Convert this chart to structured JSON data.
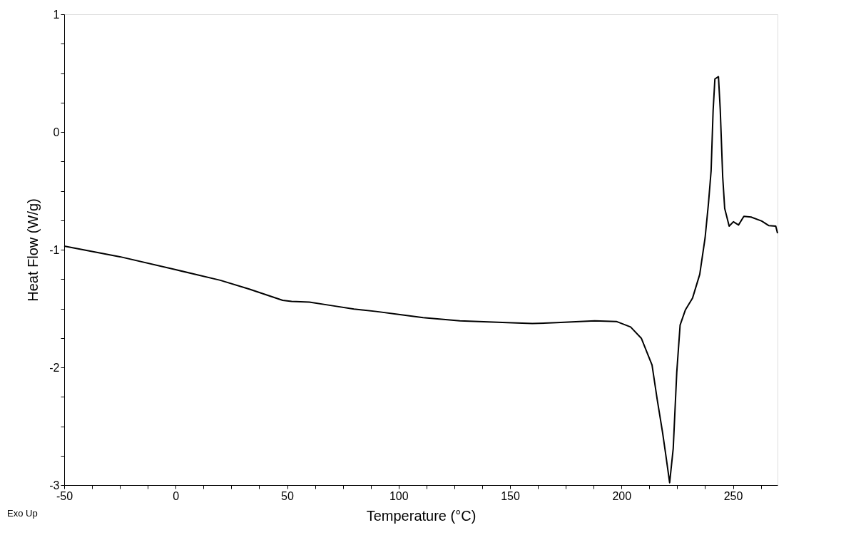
{
  "chart_data": {
    "type": "line",
    "xlabel": "Temperature (°C)",
    "ylabel": "Heat Flow (W/g)",
    "annotations": [
      "Exo Up"
    ],
    "x": [
      -50,
      -25,
      0,
      20,
      33,
      48,
      52,
      60,
      70,
      80,
      90,
      100,
      111,
      127.5,
      148.7,
      160,
      171,
      188,
      197.7,
      204.1,
      208.9,
      213.7,
      216,
      218.4,
      219.7,
      221.6,
      223.2,
      224.8,
      226.3,
      228.7,
      231.9,
      235.1,
      237.5,
      239,
      240.2,
      241.1,
      241.9,
      243.5,
      244.3,
      245.4,
      246.3,
      248.3,
      250.2,
      252.5,
      254.9,
      258.1,
      262.9,
      266,
      269.2,
      270
    ],
    "series": [
      {
        "color": "#000000",
        "values": [
          -0.97,
          -1.06,
          -1.17,
          -1.26,
          -1.335,
          -1.43,
          -1.44,
          -1.445,
          -1.475,
          -1.505,
          -1.525,
          -1.55,
          -1.577,
          -1.605,
          -1.62,
          -1.628,
          -1.62,
          -1.605,
          -1.61,
          -1.657,
          -1.753,
          -1.98,
          -2.27,
          -2.55,
          -2.72,
          -2.98,
          -2.69,
          -2.04,
          -1.64,
          -1.51,
          -1.41,
          -1.21,
          -0.9,
          -0.61,
          -0.33,
          0.18,
          0.45,
          0.47,
          0.19,
          -0.38,
          -0.65,
          -0.8,
          -0.763,
          -0.79,
          -0.717,
          -0.723,
          -0.757,
          -0.795,
          -0.8,
          -0.86
        ]
      }
    ],
    "xlim": [
      -50,
      270
    ],
    "xticks": [
      -50,
      {
        "value": -37.5,
        "label": null
      },
      {
        "value": -25,
        "label": null
      },
      {
        "value": -12.5,
        "label": null
      },
      0,
      {
        "value": 12.5,
        "label": null
      },
      {
        "value": 25,
        "label": null
      },
      {
        "value": 37.5,
        "label": null
      },
      50,
      {
        "value": 62.5,
        "label": null
      },
      {
        "value": 75,
        "label": null
      },
      {
        "value": 87.5,
        "label": null
      },
      100,
      {
        "value": 112.5,
        "label": null
      },
      {
        "value": 125,
        "label": null
      },
      {
        "value": 137.5,
        "label": null
      },
      150,
      {
        "value": 162.5,
        "label": null
      },
      {
        "value": 175,
        "label": null
      },
      {
        "value": 187.5,
        "label": null
      },
      200,
      {
        "value": 212.5,
        "label": null
      },
      {
        "value": 225,
        "label": null
      },
      {
        "value": 237.5,
        "label": null
      },
      250,
      {
        "value": 262.5,
        "label": null
      }
    ],
    "ylim": [
      -3,
      1
    ],
    "yticks": [
      -3,
      {
        "value": -2.75,
        "label": null
      },
      {
        "value": -2.5,
        "label": null
      },
      {
        "value": -2.25,
        "label": null
      },
      -2,
      {
        "value": -1.75,
        "label": null
      },
      {
        "value": -1.5,
        "label": null
      },
      {
        "value": -1.25,
        "label": null
      },
      -1,
      {
        "value": -0.75,
        "label": null
      },
      {
        "value": -0.5,
        "label": null
      },
      {
        "value": -0.25,
        "label": null
      },
      0,
      {
        "value": 0.25,
        "label": null
      },
      {
        "value": 0.5,
        "label": null
      },
      {
        "value": 0.75,
        "label": null
      },
      1
    ],
    "grid": false,
    "marker": "none",
    "line_style": "solid"
  }
}
